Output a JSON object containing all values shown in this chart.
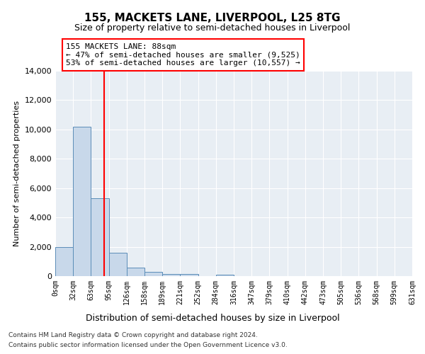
{
  "title": "155, MACKETS LANE, LIVERPOOL, L25 8TG",
  "subtitle": "Size of property relative to semi-detached houses in Liverpool",
  "xlabel": "Distribution of semi-detached houses by size in Liverpool",
  "ylabel": "Number of semi-detached properties",
  "footer_line1": "Contains HM Land Registry data © Crown copyright and database right 2024.",
  "footer_line2": "Contains public sector information licensed under the Open Government Licence v3.0.",
  "annotation_line1": "155 MACKETS LANE: 88sqm",
  "annotation_line2": "← 47% of semi-detached houses are smaller (9,525)",
  "annotation_line3": "53% of semi-detached houses are larger (10,557) →",
  "bar_color": "#c8d8ea",
  "bar_edge_color": "#5b8db8",
  "red_line_x": 88,
  "bin_width": 32,
  "ylim": [
    0,
    14000
  ],
  "yticks": [
    0,
    2000,
    4000,
    6000,
    8000,
    10000,
    12000,
    14000
  ],
  "bin_labels": [
    "0sqm",
    "32sqm",
    "63sqm",
    "95sqm",
    "126sqm",
    "158sqm",
    "189sqm",
    "221sqm",
    "252sqm",
    "284sqm",
    "316sqm",
    "347sqm",
    "379sqm",
    "410sqm",
    "442sqm",
    "473sqm",
    "505sqm",
    "536sqm",
    "568sqm",
    "599sqm",
    "631sqm"
  ],
  "bar_values": [
    2000,
    10200,
    5300,
    1600,
    600,
    280,
    160,
    130,
    0,
    120,
    0,
    0,
    0,
    0,
    0,
    0,
    0,
    0,
    0,
    0
  ],
  "num_bins": 20,
  "bg_color": "#e8eef4"
}
